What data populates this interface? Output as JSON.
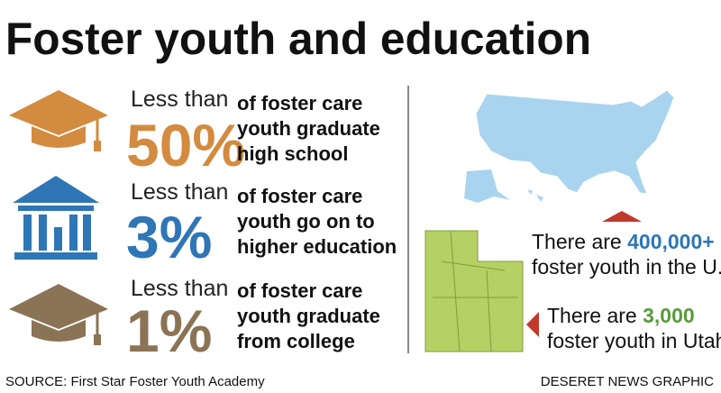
{
  "header": {
    "title": "Foster youth and education"
  },
  "stats": [
    {
      "prefix": "Less than",
      "figure": "50%",
      "lines": [
        "of foster care",
        "youth graduate",
        "high school"
      ]
    },
    {
      "prefix": "Less than",
      "figure": "3%",
      "lines": [
        "of foster care",
        "youth go on to",
        "higher education"
      ]
    },
    {
      "prefix": "Less than",
      "figure": "1%",
      "lines": [
        "of foster care",
        "youth graduate",
        "from college"
      ]
    }
  ],
  "facts": [
    {
      "lead": "There are ",
      "figure": "400,000+",
      "line2": "foster youth in the U.S."
    },
    {
      "lead": "There are ",
      "figure": "3,000",
      "line2": "foster youth in Utah"
    }
  ],
  "footer": {
    "source": "SOURCE: First Star Foster Youth Academy",
    "credit": "DESERET NEWS GRAPHIC"
  }
}
